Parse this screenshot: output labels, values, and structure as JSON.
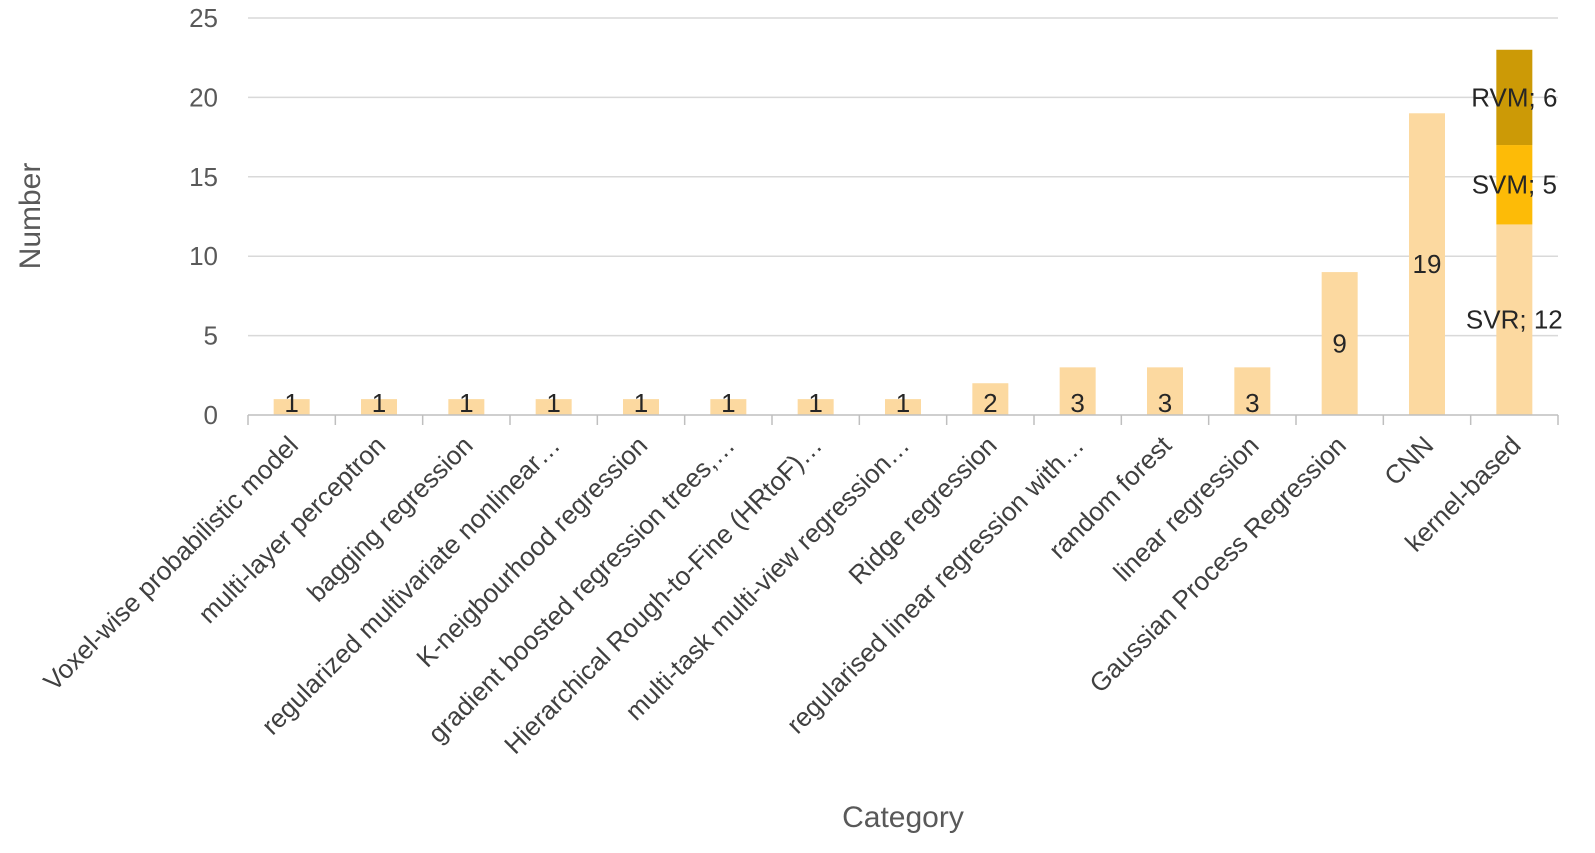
{
  "chart_data": {
    "type": "bar",
    "stacked": true,
    "categories": [
      "Voxel-wise probabilistic model",
      "multi-layer perceptron",
      "bagging regression",
      "regularized multivariate nonlinear…",
      "K-neigbourhood regression",
      "gradient boosted regression trees,…",
      "Hierarchical Rough-to-Fine (HRtoF)…",
      "multi-task multi-view regression…",
      "Ridge regression",
      "regularised linear regression with…",
      "random forest",
      "linear regression",
      "Gaussian Process Regression",
      "CNN",
      "kernel-based"
    ],
    "series": [
      {
        "values": [
          1,
          1,
          1,
          1,
          1,
          1,
          1,
          1,
          2,
          3,
          3,
          3,
          9,
          19,
          12
        ],
        "labels": [
          "1",
          "1",
          "1",
          "1",
          "1",
          "1",
          "1",
          "1",
          "2",
          "3",
          "3",
          "3",
          "9",
          "19",
          "SVR; 12"
        ],
        "color": "#fcd9a0"
      },
      {
        "values": [
          0,
          0,
          0,
          0,
          0,
          0,
          0,
          0,
          0,
          0,
          0,
          0,
          0,
          0,
          5
        ],
        "labels": [
          "",
          "",
          "",
          "",
          "",
          "",
          "",
          "",
          "",
          "",
          "",
          "",
          "",
          "",
          "SVM; 5"
        ],
        "color": "#fdbb07"
      },
      {
        "values": [
          0,
          0,
          0,
          0,
          0,
          0,
          0,
          0,
          0,
          0,
          0,
          0,
          0,
          0,
          6
        ],
        "labels": [
          "",
          "",
          "",
          "",
          "",
          "",
          "",
          "",
          "",
          "",
          "",
          "",
          "",
          "",
          "RVM; 6"
        ],
        "color": "#cc9a06"
      }
    ],
    "xlabel": "Category",
    "ylabel": "Number",
    "ylim": [
      0,
      25
    ],
    "yticks": [
      0,
      5,
      10,
      15,
      20,
      25
    ],
    "grid": true
  }
}
